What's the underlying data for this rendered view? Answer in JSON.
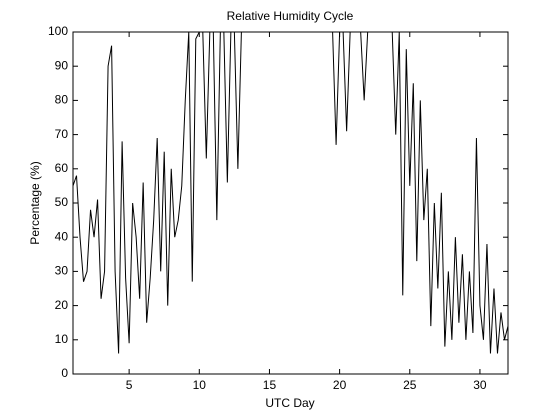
{
  "chart_data": {
    "type": "line",
    "title": "Relative Humidity Cycle",
    "xlabel": "UTC Day",
    "ylabel": "Percentage (%)",
    "x": [
      1,
      1.25,
      1.5,
      1.75,
      2,
      2.25,
      2.5,
      2.75,
      3,
      3.25,
      3.5,
      3.75,
      4,
      4.25,
      4.5,
      4.75,
      5,
      5.25,
      5.5,
      5.75,
      6,
      6.25,
      6.5,
      6.75,
      7,
      7.25,
      7.5,
      7.75,
      8,
      8.25,
      8.5,
      8.75,
      9,
      9.25,
      9.5,
      9.75,
      10,
      10.25,
      10.5,
      10.75,
      11,
      11.25,
      11.5,
      11.75,
      12,
      12.25,
      12.5,
      12.75,
      13,
      13.25,
      13.5,
      13.75,
      14,
      14.25,
      14.5,
      14.75,
      15,
      15.25,
      15.5,
      15.75,
      16,
      16.25,
      16.5,
      16.75,
      17,
      17.25,
      17.5,
      17.75,
      18,
      18.25,
      18.5,
      18.75,
      19,
      19.25,
      19.5,
      19.75,
      20,
      20.25,
      20.5,
      20.75,
      21,
      21.25,
      21.5,
      21.75,
      22,
      22.25,
      22.5,
      22.75,
      23,
      23.25,
      23.5,
      23.75,
      24,
      24.25,
      24.5,
      24.75,
      25,
      25.25,
      25.5,
      25.75,
      26,
      26.25,
      26.5,
      26.75,
      27,
      27.25,
      27.5,
      27.75,
      28,
      28.25,
      28.5,
      28.75,
      29,
      29.25,
      29.5,
      29.75,
      30,
      30.25,
      30.5,
      30.75,
      31,
      31.25,
      31.5,
      31.75,
      32
    ],
    "series": [
      {
        "color": "#000000",
        "values": [
          55,
          58,
          40,
          27,
          30,
          48,
          40,
          51,
          22,
          30,
          90,
          96,
          30,
          6,
          68,
          28,
          9,
          50,
          40,
          22,
          56,
          15,
          28,
          45,
          69,
          30,
          65,
          20,
          60,
          40,
          45,
          55,
          80,
          100,
          27,
          98,
          100,
          100,
          63,
          100,
          100,
          45,
          100,
          100,
          56,
          100,
          100,
          60,
          100,
          100,
          100,
          100,
          100,
          100,
          100,
          100,
          100,
          100,
          100,
          100,
          100,
          100,
          100,
          100,
          100,
          100,
          100,
          100,
          100,
          100,
          100,
          100,
          100,
          100,
          100,
          67,
          100,
          100,
          71,
          100,
          100,
          100,
          100,
          80,
          100,
          100,
          100,
          100,
          100,
          100,
          100,
          100,
          70,
          100,
          23,
          95,
          55,
          85,
          33,
          80,
          45,
          60,
          14,
          50,
          25,
          53,
          8,
          30,
          10,
          40,
          15,
          35,
          10,
          30,
          12,
          69,
          20,
          10,
          38,
          6,
          25,
          6,
          18,
          10,
          14
        ]
      }
    ],
    "xlim": [
      1,
      32
    ],
    "ylim": [
      0,
      100
    ],
    "xticks": [
      5,
      10,
      15,
      20,
      25,
      30
    ],
    "yticks": [
      0,
      10,
      20,
      30,
      40,
      50,
      60,
      70,
      80,
      90,
      100
    ]
  }
}
